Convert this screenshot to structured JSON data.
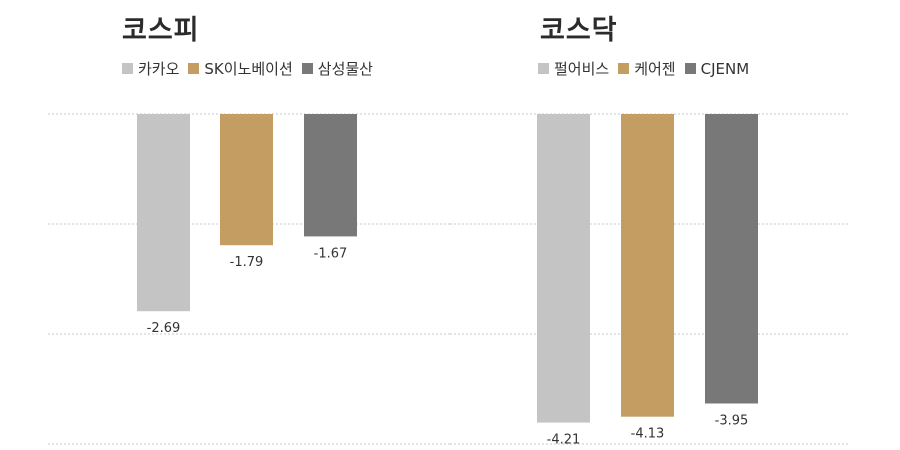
{
  "chart_data": [
    {
      "type": "bar",
      "title": "코스피",
      "xlabel": "",
      "ylabel": "",
      "ylim": [
        -4.5,
        0
      ],
      "grid": true,
      "legend_position": "top-left",
      "categories": [
        "카카오",
        "SK이노베이션",
        "삼성물산"
      ],
      "values": [
        -2.69,
        -1.79,
        -1.67
      ],
      "value_labels": [
        "-2.69",
        "-1.79",
        "-1.67"
      ],
      "colors": [
        "#c4c4c4",
        "#c49d63",
        "#787878"
      ]
    },
    {
      "type": "bar",
      "title": "코스닥",
      "xlabel": "",
      "ylabel": "",
      "ylim": [
        -4.5,
        0
      ],
      "grid": true,
      "legend_position": "top-left",
      "categories": [
        "펄어비스",
        "케어젠",
        "CJENM"
      ],
      "values": [
        -4.21,
        -4.13,
        -3.95
      ],
      "value_labels": [
        "-4.21",
        "-4.13",
        "-3.95"
      ],
      "colors": [
        "#c4c4c4",
        "#c49d63",
        "#787878"
      ]
    }
  ]
}
